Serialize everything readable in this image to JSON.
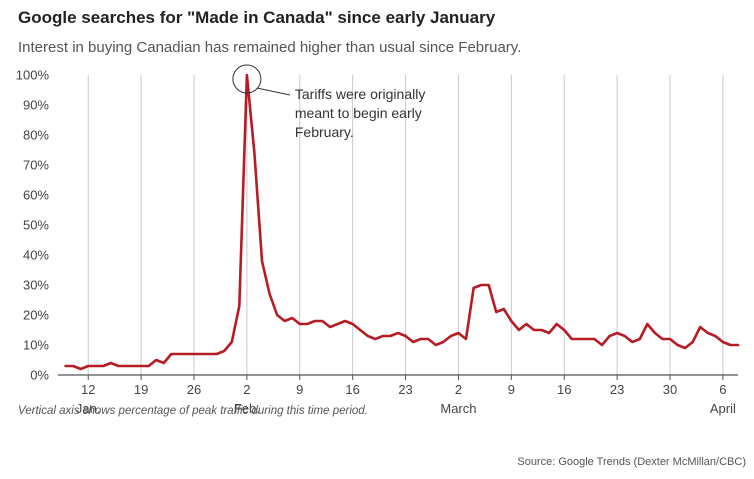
{
  "header": {
    "title": "Google searches for \"Made in Canada\" since early January",
    "subtitle": "Interest in buying Canadian has remained higher than usual since February."
  },
  "footer": {
    "note": "Vertical axis shows percentage of peak traffic during this time period.",
    "source": "Source: Google Trends (Dexter McMillan/CBC)"
  },
  "colors": {
    "line": "#b71c24",
    "grid": "#c8c8c8",
    "axis": "#555555",
    "text": "#444444"
  },
  "chart_data": {
    "type": "line",
    "title": "Google searches for \"Made in Canada\" since early January",
    "xlabel": "",
    "ylabel": "",
    "ylim": [
      0,
      100
    ],
    "xlim": [
      "2025-01-08",
      "2025-04-08"
    ],
    "y_ticks": [
      "0%",
      "10%",
      "20%",
      "30%",
      "40%",
      "50%",
      "60%",
      "70%",
      "80%",
      "90%",
      "100%"
    ],
    "y_tick_values": [
      0,
      10,
      20,
      30,
      40,
      50,
      60,
      70,
      80,
      90,
      100
    ],
    "x_ticks": [
      {
        "date": "2025-01-12",
        "day": "12",
        "month": "Jan."
      },
      {
        "date": "2025-01-19",
        "day": "19",
        "month": ""
      },
      {
        "date": "2025-01-26",
        "day": "26",
        "month": ""
      },
      {
        "date": "2025-02-02",
        "day": "2",
        "month": "Feb."
      },
      {
        "date": "2025-02-09",
        "day": "9",
        "month": ""
      },
      {
        "date": "2025-02-16",
        "day": "16",
        "month": ""
      },
      {
        "date": "2025-02-23",
        "day": "23",
        "month": ""
      },
      {
        "date": "2025-03-02",
        "day": "2",
        "month": "March"
      },
      {
        "date": "2025-03-09",
        "day": "9",
        "month": ""
      },
      {
        "date": "2025-03-16",
        "day": "16",
        "month": ""
      },
      {
        "date": "2025-03-23",
        "day": "23",
        "month": ""
      },
      {
        "date": "2025-03-30",
        "day": "30",
        "month": ""
      },
      {
        "date": "2025-04-06",
        "day": "6",
        "month": "April"
      }
    ],
    "grid": true,
    "series": [
      {
        "points": [
          [
            "2025-01-09",
            3
          ],
          [
            "2025-01-10",
            3
          ],
          [
            "2025-01-11",
            2
          ],
          [
            "2025-01-12",
            3
          ],
          [
            "2025-01-13",
            3
          ],
          [
            "2025-01-14",
            3
          ],
          [
            "2025-01-15",
            4
          ],
          [
            "2025-01-16",
            3
          ],
          [
            "2025-01-17",
            3
          ],
          [
            "2025-01-18",
            3
          ],
          [
            "2025-01-19",
            3
          ],
          [
            "2025-01-20",
            3
          ],
          [
            "2025-01-21",
            5
          ],
          [
            "2025-01-22",
            4
          ],
          [
            "2025-01-23",
            7
          ],
          [
            "2025-01-24",
            7
          ],
          [
            "2025-01-25",
            7
          ],
          [
            "2025-01-26",
            7
          ],
          [
            "2025-01-27",
            7
          ],
          [
            "2025-01-28",
            7
          ],
          [
            "2025-01-29",
            7
          ],
          [
            "2025-01-30",
            8
          ],
          [
            "2025-01-31",
            11
          ],
          [
            "2025-02-01",
            23
          ],
          [
            "2025-02-02",
            100
          ],
          [
            "2025-02-03",
            74
          ],
          [
            "2025-02-04",
            38
          ],
          [
            "2025-02-05",
            27
          ],
          [
            "2025-02-06",
            20
          ],
          [
            "2025-02-07",
            18
          ],
          [
            "2025-02-08",
            19
          ],
          [
            "2025-02-09",
            17
          ],
          [
            "2025-02-10",
            17
          ],
          [
            "2025-02-11",
            18
          ],
          [
            "2025-02-12",
            18
          ],
          [
            "2025-02-13",
            16
          ],
          [
            "2025-02-14",
            17
          ],
          [
            "2025-02-15",
            18
          ],
          [
            "2025-02-16",
            17
          ],
          [
            "2025-02-17",
            15
          ],
          [
            "2025-02-18",
            13
          ],
          [
            "2025-02-19",
            12
          ],
          [
            "2025-02-20",
            13
          ],
          [
            "2025-02-21",
            13
          ],
          [
            "2025-02-22",
            14
          ],
          [
            "2025-02-23",
            13
          ],
          [
            "2025-02-24",
            11
          ],
          [
            "2025-02-25",
            12
          ],
          [
            "2025-02-26",
            12
          ],
          [
            "2025-02-27",
            10
          ],
          [
            "2025-02-28",
            11
          ],
          [
            "2025-03-01",
            13
          ],
          [
            "2025-03-02",
            14
          ],
          [
            "2025-03-03",
            12
          ],
          [
            "2025-03-04",
            29
          ],
          [
            "2025-03-05",
            30
          ],
          [
            "2025-03-06",
            30
          ],
          [
            "2025-03-07",
            21
          ],
          [
            "2025-03-08",
            22
          ],
          [
            "2025-03-09",
            18
          ],
          [
            "2025-03-10",
            15
          ],
          [
            "2025-03-11",
            17
          ],
          [
            "2025-03-12",
            15
          ],
          [
            "2025-03-13",
            15
          ],
          [
            "2025-03-14",
            14
          ],
          [
            "2025-03-15",
            17
          ],
          [
            "2025-03-16",
            15
          ],
          [
            "2025-03-17",
            12
          ],
          [
            "2025-03-18",
            12
          ],
          [
            "2025-03-19",
            12
          ],
          [
            "2025-03-20",
            12
          ],
          [
            "2025-03-21",
            10
          ],
          [
            "2025-03-22",
            13
          ],
          [
            "2025-03-23",
            14
          ],
          [
            "2025-03-24",
            13
          ],
          [
            "2025-03-25",
            11
          ],
          [
            "2025-03-26",
            12
          ],
          [
            "2025-03-27",
            17
          ],
          [
            "2025-03-28",
            14
          ],
          [
            "2025-03-29",
            12
          ],
          [
            "2025-03-30",
            12
          ],
          [
            "2025-03-31",
            10
          ],
          [
            "2025-04-01",
            9
          ],
          [
            "2025-04-02",
            11
          ],
          [
            "2025-04-03",
            16
          ],
          [
            "2025-04-04",
            14
          ],
          [
            "2025-04-05",
            13
          ],
          [
            "2025-04-06",
            11
          ],
          [
            "2025-04-07",
            10
          ],
          [
            "2025-04-08",
            10
          ]
        ]
      }
    ],
    "annotations": [
      {
        "date": "2025-02-02",
        "value": 100,
        "lines": [
          "Tariffs were originally",
          "meant to begin early",
          "February."
        ]
      }
    ]
  }
}
